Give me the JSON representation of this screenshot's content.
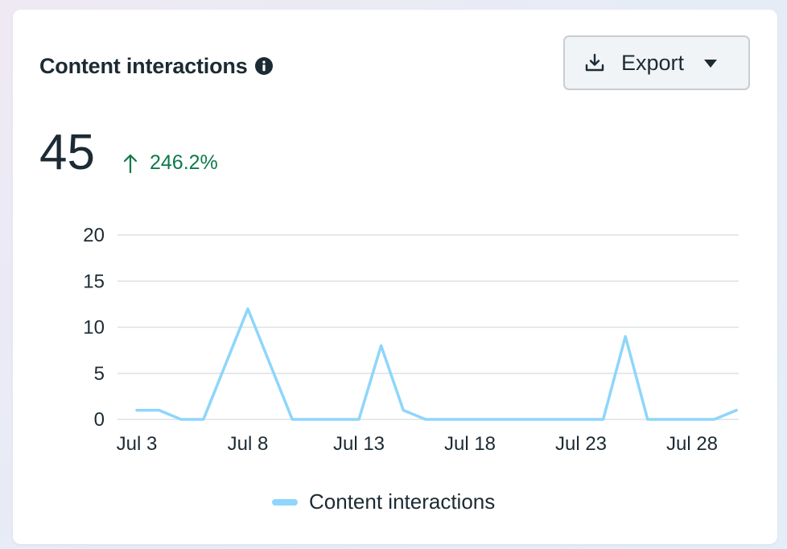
{
  "card": {
    "title": "Content interactions",
    "info_icon": "info-icon",
    "export_button": {
      "label": "Export",
      "icon": "download-icon",
      "caret": "caret-down-icon"
    },
    "metric": {
      "value": "45",
      "change": "246.2%",
      "change_direction": "up",
      "change_color": "#0e7a4b"
    }
  },
  "chart_data": {
    "type": "line",
    "ylim": [
      0,
      20
    ],
    "yticks": [
      "0",
      "5",
      "10",
      "15",
      "20"
    ],
    "xticks": [
      "Jul 3",
      "Jul 8",
      "Jul 13",
      "Jul 18",
      "Jul 23",
      "Jul 28"
    ],
    "x": [
      "Jul 3",
      "Jul 4",
      "Jul 5",
      "Jul 6",
      "Jul 7",
      "Jul 8",
      "Jul 9",
      "Jul 10",
      "Jul 11",
      "Jul 12",
      "Jul 13",
      "Jul 14",
      "Jul 15",
      "Jul 16",
      "Jul 17",
      "Jul 18",
      "Jul 19",
      "Jul 20",
      "Jul 21",
      "Jul 22",
      "Jul 23",
      "Jul 24",
      "Jul 25",
      "Jul 26",
      "Jul 27",
      "Jul 28",
      "Jul 29",
      "Jul 30"
    ],
    "series": [
      {
        "name": "Content interactions",
        "color": "#8ed6fb",
        "values": [
          1,
          1,
          0,
          0,
          6,
          12,
          6,
          0,
          0,
          0,
          0,
          8,
          1,
          0,
          0,
          0,
          0,
          0,
          0,
          0,
          0,
          0,
          9,
          0,
          0,
          0,
          0,
          1
        ]
      }
    ],
    "grid": true,
    "legend_position": "bottom"
  }
}
